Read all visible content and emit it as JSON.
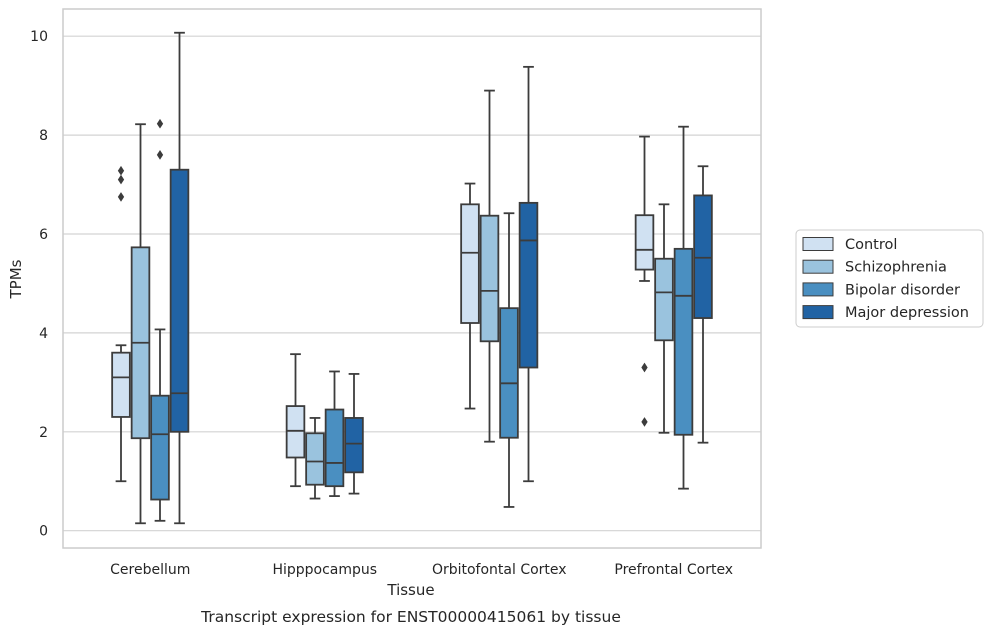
{
  "chart_data": {
    "type": "box",
    "xlabel": "Tissue",
    "ylabel": "TPMs",
    "caption": "Transcript expression for ENST00000415061 by tissue",
    "ylim": [
      -0.35,
      10.55
    ],
    "yticks": [
      0,
      2,
      4,
      6,
      8,
      10
    ],
    "grid": true,
    "legend_position": "right",
    "categories": [
      "Cerebellum",
      "Hipppocampus",
      "Orbitofontal Cortex",
      "Prefrontal Cortex"
    ],
    "series": [
      {
        "name": "Control",
        "color": "#d0e1f2",
        "boxes": [
          {
            "whisker_low": 1.0,
            "q1": 2.3,
            "median": 3.1,
            "q3": 3.6,
            "whisker_high": 3.75,
            "outliers": [
              6.75,
              7.1,
              7.28
            ]
          },
          {
            "whisker_low": 0.9,
            "q1": 1.48,
            "median": 2.02,
            "q3": 2.52,
            "whisker_high": 3.57,
            "outliers": []
          },
          {
            "whisker_low": 2.47,
            "q1": 4.2,
            "median": 5.62,
            "q3": 6.6,
            "whisker_high": 7.02,
            "outliers": []
          },
          {
            "whisker_low": 5.05,
            "q1": 5.28,
            "median": 5.68,
            "q3": 6.38,
            "whisker_high": 7.97,
            "outliers": [
              2.2,
              3.3
            ]
          }
        ]
      },
      {
        "name": "Schizophrenia",
        "color": "#9ac3de",
        "boxes": [
          {
            "whisker_low": 0.15,
            "q1": 1.87,
            "median": 3.8,
            "q3": 5.73,
            "whisker_high": 8.22,
            "outliers": []
          },
          {
            "whisker_low": 0.65,
            "q1": 0.93,
            "median": 1.4,
            "q3": 1.97,
            "whisker_high": 2.28,
            "outliers": []
          },
          {
            "whisker_low": 1.8,
            "q1": 3.83,
            "median": 4.85,
            "q3": 6.37,
            "whisker_high": 8.9,
            "outliers": []
          },
          {
            "whisker_low": 1.98,
            "q1": 3.85,
            "median": 4.82,
            "q3": 5.5,
            "whisker_high": 6.6,
            "outliers": []
          }
        ]
      },
      {
        "name": "Bipolar disorder",
        "color": "#4a8fc1",
        "boxes": [
          {
            "whisker_low": 0.2,
            "q1": 0.63,
            "median": 1.95,
            "q3": 2.73,
            "whisker_high": 4.07,
            "outliers": [
              7.6,
              8.23
            ]
          },
          {
            "whisker_low": 0.7,
            "q1": 0.9,
            "median": 1.37,
            "q3": 2.45,
            "whisker_high": 3.22,
            "outliers": []
          },
          {
            "whisker_low": 0.48,
            "q1": 1.88,
            "median": 2.98,
            "q3": 4.5,
            "whisker_high": 6.42,
            "outliers": []
          },
          {
            "whisker_low": 0.85,
            "q1": 1.94,
            "median": 4.75,
            "q3": 5.7,
            "whisker_high": 8.17,
            "outliers": []
          }
        ]
      },
      {
        "name": "Major depression",
        "color": "#2163a4",
        "boxes": [
          {
            "whisker_low": 0.15,
            "q1": 2.0,
            "median": 2.78,
            "q3": 7.3,
            "whisker_high": 10.07,
            "outliers": []
          },
          {
            "whisker_low": 0.75,
            "q1": 1.18,
            "median": 1.76,
            "q3": 2.28,
            "whisker_high": 3.17,
            "outliers": []
          },
          {
            "whisker_low": 1.0,
            "q1": 3.3,
            "median": 5.87,
            "q3": 6.63,
            "whisker_high": 9.38,
            "outliers": []
          },
          {
            "whisker_low": 1.78,
            "q1": 4.3,
            "median": 5.52,
            "q3": 6.78,
            "whisker_high": 7.37,
            "outliers": []
          }
        ]
      }
    ]
  }
}
